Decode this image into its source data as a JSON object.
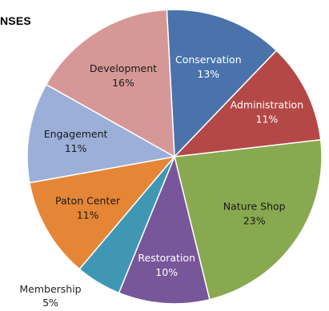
{
  "chart_data": {
    "type": "pie",
    "title": "NSES",
    "slices": [
      {
        "label": "Conservation",
        "value": 13,
        "pct_label": "13%",
        "color": "#4a73ac",
        "text_color": "#ffffff"
      },
      {
        "label": "Administration",
        "value": 11,
        "pct_label": "11%",
        "color": "#b44846",
        "text_color": "#ffffff"
      },
      {
        "label": "Nature Shop",
        "value": 23,
        "pct_label": "23%",
        "color": "#88a94f",
        "text_color": "#1a1a1a"
      },
      {
        "label": "Restoration",
        "value": 10,
        "pct_label": "10%",
        "color": "#77569a",
        "text_color": "#ffffff"
      },
      {
        "label": "Membership",
        "value": 5,
        "pct_label": "5%",
        "color": "#3f97b3",
        "text_color": "#222222"
      },
      {
        "label": "Paton Center",
        "value": 11,
        "pct_label": "11%",
        "color": "#e58636",
        "text_color": "#1a1a1a"
      },
      {
        "label": "Engagement",
        "value": 11,
        "pct_label": "11%",
        "color": "#9bafd8",
        "text_color": "#1a1a1a"
      },
      {
        "label": "Development",
        "value": 16,
        "pct_label": "16%",
        "color": "#d69896",
        "text_color": "#1a1a1a"
      }
    ]
  }
}
